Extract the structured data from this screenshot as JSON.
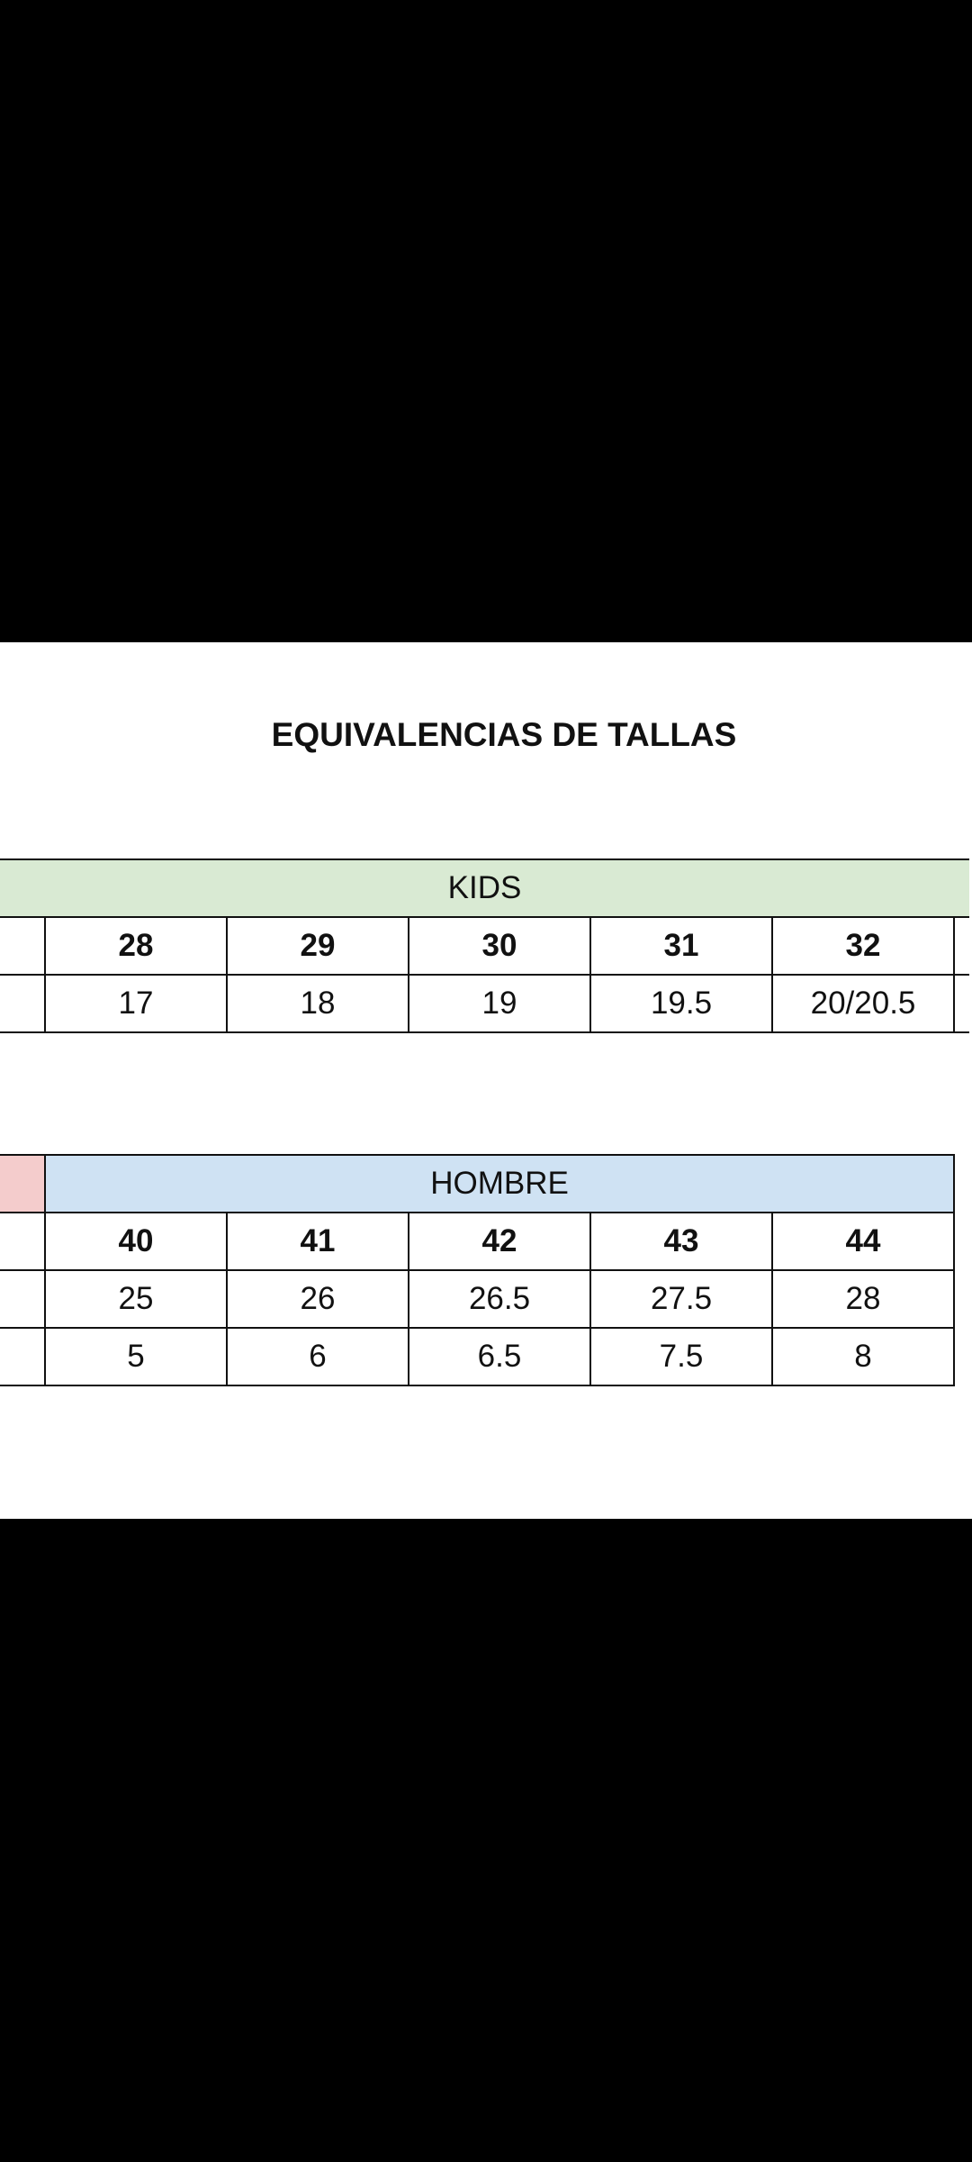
{
  "title": "EQUIVALENCIAS DE TALLAS",
  "kids": {
    "header": "KIDS",
    "sizes": [
      "28",
      "29",
      "30",
      "31",
      "32"
    ],
    "row2": [
      "17",
      "18",
      "19",
      "19.5",
      "20/20.5"
    ]
  },
  "hombre": {
    "header": "HOMBRE",
    "sizes": [
      "40",
      "41",
      "42",
      "43",
      "44"
    ],
    "row2": [
      "25",
      "26",
      "26.5",
      "27.5",
      "28"
    ],
    "row3": [
      "5",
      "6",
      "6.5",
      "7.5",
      "8"
    ]
  },
  "colors": {
    "kids_header": "#d9ead3",
    "hombre_header": "#cfe2f3",
    "pink_cell": "#f4cccc"
  }
}
